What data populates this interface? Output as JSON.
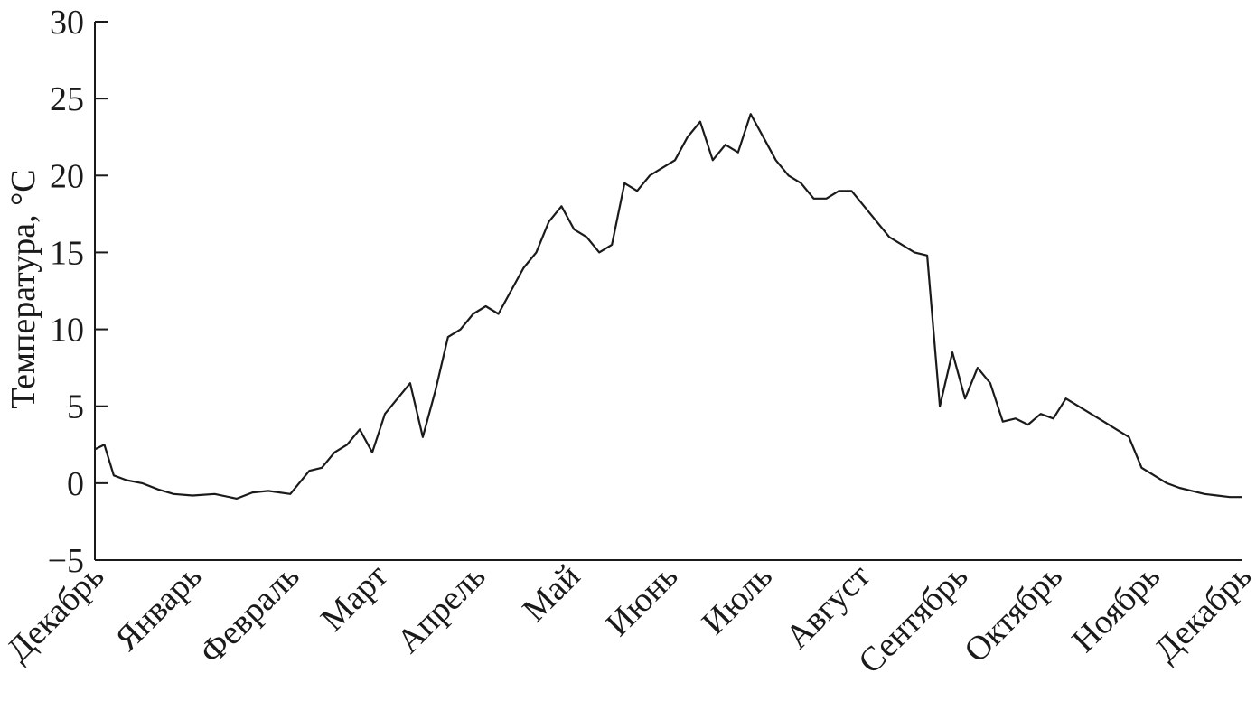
{
  "chart_data": {
    "type": "line",
    "title": "",
    "ylabel": "Температура, °C",
    "xlabel": "",
    "ylim": [
      -5,
      30
    ],
    "yticks": [
      -5,
      0,
      5,
      10,
      15,
      20,
      25,
      30
    ],
    "ytick_labels": [
      "−5",
      "0",
      "5",
      "10",
      "15",
      "20",
      "25",
      "30"
    ],
    "xlim": [
      0,
      364
    ],
    "xticks": [
      {
        "label": "Декабрь",
        "x": 0
      },
      {
        "label": "Январь",
        "x": 31
      },
      {
        "label": "Февраль",
        "x": 62
      },
      {
        "label": "Март",
        "x": 90
      },
      {
        "label": "Апрель",
        "x": 121
      },
      {
        "label": "Май",
        "x": 151
      },
      {
        "label": "Июнь",
        "x": 182
      },
      {
        "label": "Июль",
        "x": 212
      },
      {
        "label": "Август",
        "x": 243
      },
      {
        "label": "Сентябрь",
        "x": 274
      },
      {
        "label": "Октябрь",
        "x": 304
      },
      {
        "label": "Ноябрь",
        "x": 335
      },
      {
        "label": "Декабрь",
        "x": 364
      }
    ],
    "grid": false,
    "line_color": "#1a1a1a",
    "series": [
      {
        "x": [
          0,
          3,
          6,
          10,
          15,
          20,
          25,
          31,
          38,
          45,
          50,
          55,
          62,
          68,
          72,
          76,
          80,
          84,
          88,
          92,
          96,
          100,
          104,
          108,
          112,
          116,
          120,
          124,
          128,
          132,
          136,
          140,
          144,
          148,
          152,
          156,
          160,
          164,
          168,
          172,
          176,
          180,
          184,
          188,
          192,
          196,
          200,
          204,
          208,
          212,
          216,
          220,
          224,
          228,
          232,
          236,
          240,
          244,
          248,
          252,
          256,
          260,
          264,
          268,
          272,
          276,
          280,
          284,
          288,
          292,
          296,
          300,
          304,
          308,
          312,
          316,
          320,
          324,
          328,
          332,
          336,
          340,
          344,
          348,
          352,
          356,
          360,
          364
        ],
        "values": [
          2.2,
          2.5,
          0.5,
          0.2,
          0.0,
          -0.4,
          -0.7,
          -0.8,
          -0.7,
          -1.0,
          -0.6,
          -0.5,
          -0.7,
          0.8,
          1.0,
          2.0,
          2.5,
          3.5,
          2.0,
          4.5,
          5.5,
          6.5,
          3.0,
          6.0,
          9.5,
          10.0,
          11.0,
          11.5,
          11.0,
          12.5,
          14.0,
          15.0,
          17.0,
          18.0,
          16.5,
          16.0,
          15.0,
          15.5,
          19.5,
          19.0,
          20.0,
          20.5,
          21.0,
          22.5,
          23.5,
          21.0,
          22.0,
          21.5,
          24.0,
          22.5,
          21.0,
          20.0,
          19.5,
          18.5,
          18.5,
          19.0,
          19.0,
          18.0,
          17.0,
          16.0,
          15.5,
          15.0,
          14.8,
          5.0,
          8.5,
          5.5,
          7.5,
          6.5,
          4.0,
          4.2,
          3.8,
          4.5,
          4.2,
          5.5,
          5.0,
          4.5,
          4.0,
          3.5,
          3.0,
          1.0,
          0.5,
          0.0,
          -0.3,
          -0.5,
          -0.7,
          -0.8,
          -0.9,
          -0.9
        ]
      }
    ]
  }
}
